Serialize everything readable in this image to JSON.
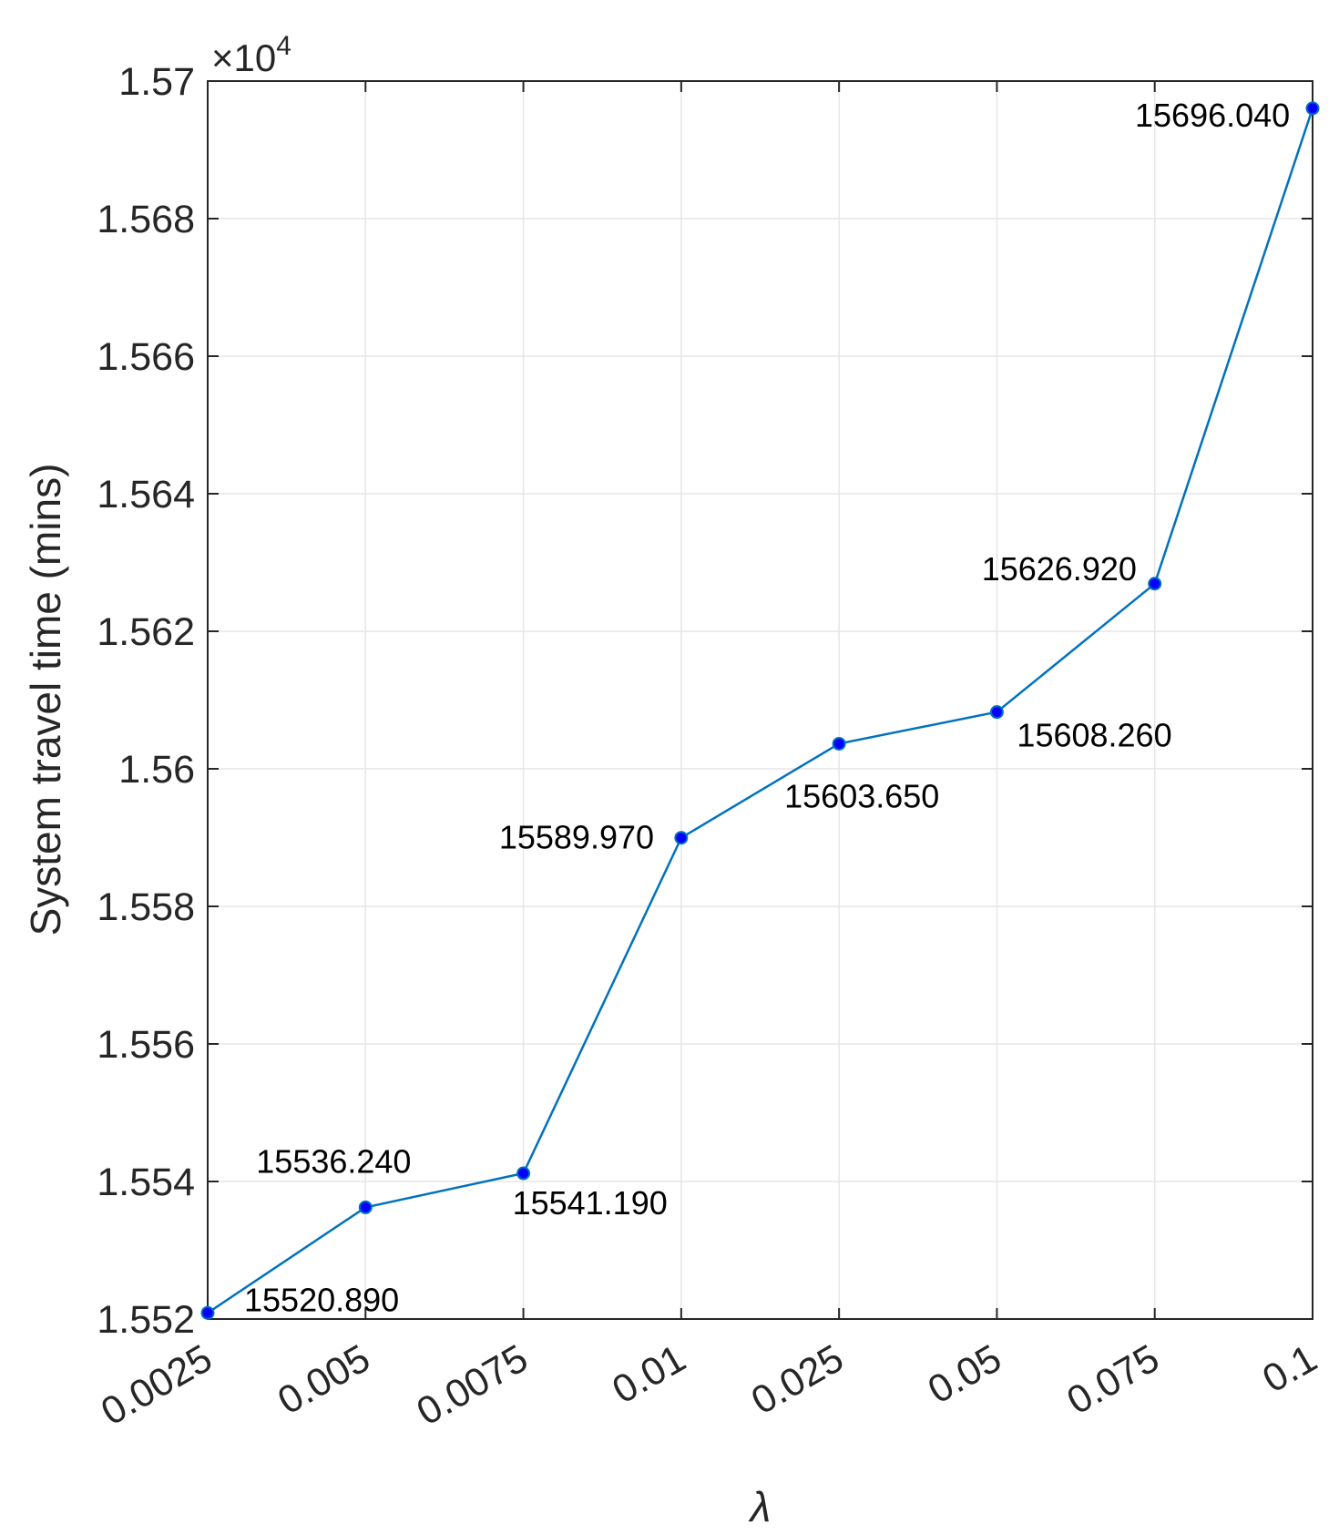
{
  "chart_data": {
    "type": "line",
    "categories": [
      "0.0025",
      "0.005",
      "0.0075",
      "0.01",
      "0.025",
      "0.05",
      "0.075",
      "0.1"
    ],
    "series": [
      {
        "values": [
          15520.89,
          15536.24,
          15541.19,
          15589.97,
          15603.65,
          15608.26,
          15626.92,
          15696.04
        ],
        "color": "#0072BD",
        "marker_color": "#0000FF"
      }
    ],
    "data_labels": [
      "15520.890",
      "15536.240",
      "15541.190",
      "15589.970",
      "15603.650",
      "15608.260",
      "15626.920",
      "15696.040"
    ],
    "title": "",
    "xlabel": "λ",
    "ylabel": "System travel time (mins)",
    "ylim": [
      15520,
      15700
    ],
    "yticks": [
      15520,
      15540,
      15560,
      15580,
      15600,
      15620,
      15640,
      15660,
      15680,
      15700
    ],
    "ytick_labels": [
      "1.552",
      "1.554",
      "1.556",
      "1.558",
      "1.56",
      "1.562",
      "1.564",
      "1.566",
      "1.568",
      "1.57"
    ],
    "y_exponent": {
      "base": "×10",
      "power": "4"
    },
    "grid": true,
    "legend": "none"
  }
}
